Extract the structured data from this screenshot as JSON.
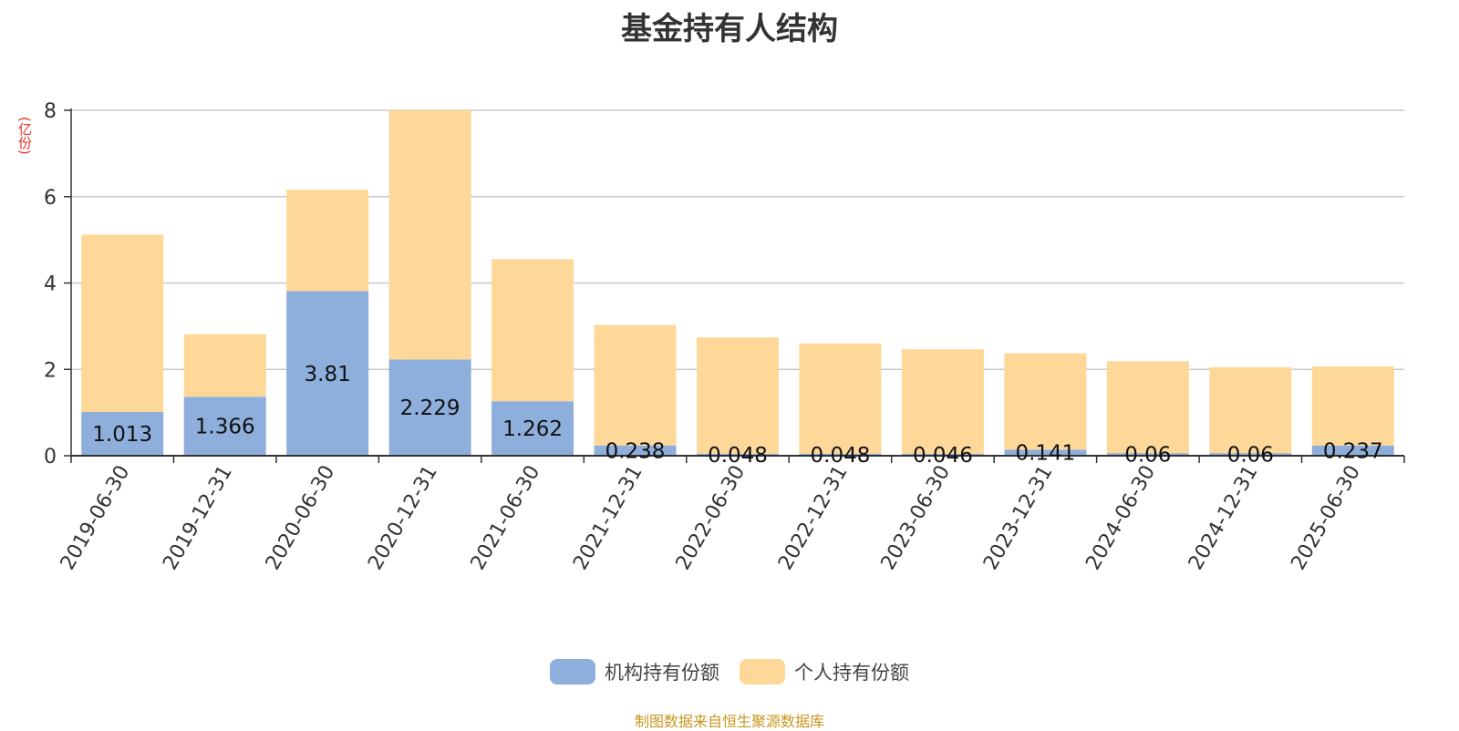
{
  "chart_data": {
    "type": "bar",
    "stacked": true,
    "title": "基金持有人结构",
    "ylabel": "(亿份)",
    "ylim": [
      0,
      8
    ],
    "yticks": [
      0,
      2,
      4,
      6,
      8
    ],
    "grid": true,
    "legend_position": "bottom-center",
    "categories": [
      "2019-06-30",
      "2019-12-31",
      "2020-06-30",
      "2020-12-31",
      "2021-06-30",
      "2021-12-31",
      "2022-06-30",
      "2022-12-31",
      "2023-06-30",
      "2023-12-31",
      "2024-06-30",
      "2024-12-31",
      "2025-06-30"
    ],
    "series": [
      {
        "name": "机构持有份额",
        "color": "#8eaedb",
        "values": [
          1.013,
          1.366,
          3.81,
          2.229,
          1.262,
          0.238,
          0.048,
          0.048,
          0.046,
          0.141,
          0.06,
          0.06,
          0.237
        ]
      },
      {
        "name": "个人持有份额",
        "color": "#fed898",
        "values": [
          4.11,
          1.45,
          2.35,
          5.77,
          3.29,
          2.79,
          2.69,
          2.55,
          2.42,
          2.23,
          2.13,
          1.99,
          1.83
        ]
      }
    ],
    "data_labels": [
      "1.013",
      "1.366",
      "3.81",
      "2.229",
      "1.262",
      "0.238",
      "0.048",
      "0.048",
      "0.046",
      "0.141",
      "0.06",
      "0.06",
      "0.237"
    ]
  },
  "source": "制图数据来自恒生聚源数据库",
  "source_color": "#c8961e"
}
